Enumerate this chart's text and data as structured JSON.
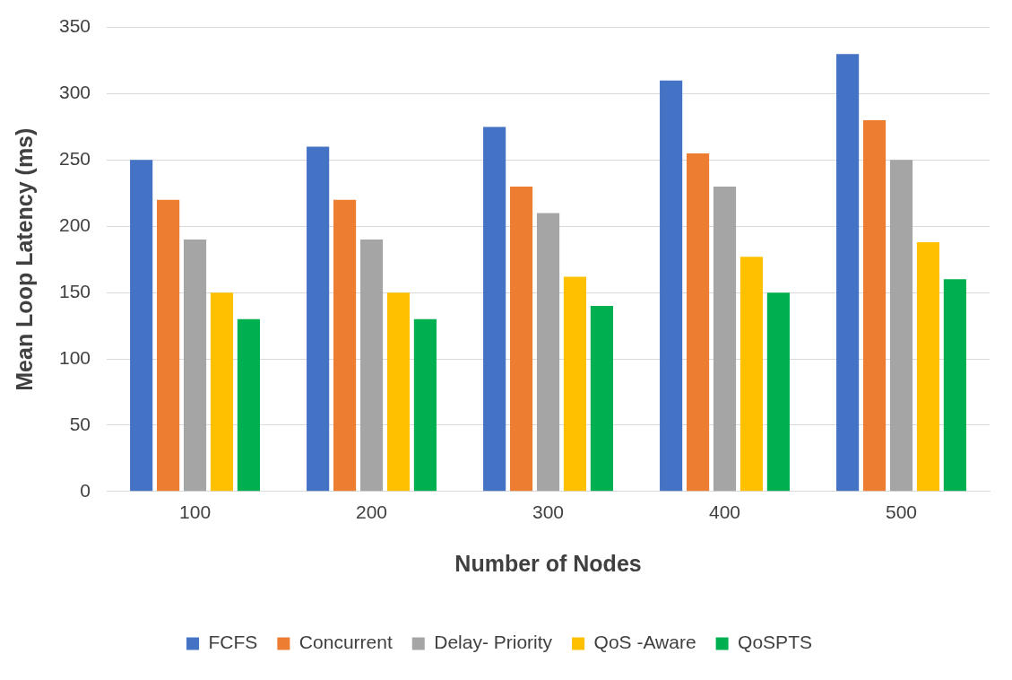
{
  "chart_data": {
    "type": "bar",
    "xlabel": "Number of Nodes",
    "ylabel": "Mean Loop Latency (ms)",
    "categories": [
      "100",
      "200",
      "300",
      "400",
      "500"
    ],
    "series": [
      {
        "name": "FCFS",
        "color": "#4472c4",
        "values": [
          250,
          260,
          275,
          310,
          330
        ]
      },
      {
        "name": "Concurrent",
        "color": "#ed7d31",
        "values": [
          220,
          220,
          230,
          255,
          280
        ]
      },
      {
        "name": "Delay- Priority",
        "color": "#a5a5a5",
        "values": [
          190,
          190,
          210,
          230,
          250
        ]
      },
      {
        "name": "QoS -Aware",
        "color": "#ffc000",
        "values": [
          150,
          150,
          162,
          177,
          188
        ]
      },
      {
        "name": "QoSPTS",
        "color": "#00b050",
        "values": [
          130,
          130,
          140,
          150,
          160
        ]
      }
    ],
    "ylim": [
      0,
      350
    ],
    "yticks": [
      0,
      50,
      100,
      150,
      200,
      250,
      300,
      350
    ],
    "grid": "y",
    "legend": "bottom"
  }
}
